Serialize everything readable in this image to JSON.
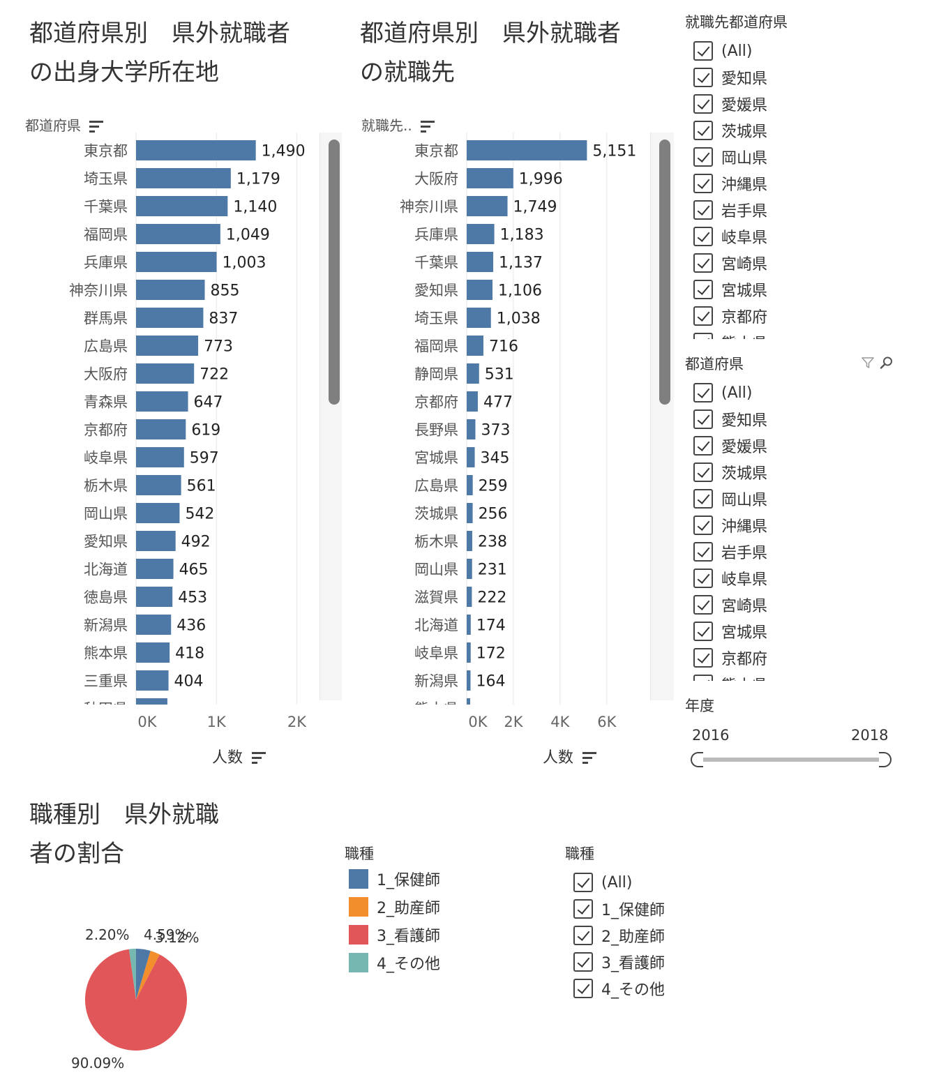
{
  "chart1": {
    "title_lines": [
      "都道府県別　県外就職者",
      "の出身大学所在地"
    ],
    "header_label": "都道府県",
    "axis_title": "人数",
    "ticks": [
      "0K",
      "1K",
      "2K"
    ],
    "partial_row_label": "秋田県",
    "partial_row_value": 390
  },
  "chart2": {
    "title_lines": [
      "都道府県別　県外就職者",
      "の就職先"
    ],
    "header_label": "就職先..",
    "axis_title": "人数",
    "ticks": [
      "0K",
      "2K",
      "4K",
      "6K"
    ],
    "partial_row_label": "熊本県",
    "partial_row_value": 150
  },
  "chart3": {
    "title_lines": [
      "職種別　県外就職",
      "者の割合"
    ],
    "legend_title": "職種"
  },
  "filters": {
    "employment_pref": {
      "title": "就職先都道府県",
      "items": [
        "(All)",
        "愛知県",
        "愛媛県",
        "茨城県",
        "岡山県",
        "沖縄県",
        "岩手県",
        "岐阜県",
        "宮崎県",
        "宮城県",
        "京都府",
        "熊本県"
      ]
    },
    "prefecture": {
      "title": "都道府県",
      "items": [
        "(All)",
        "愛知県",
        "愛媛県",
        "茨城県",
        "岡山県",
        "沖縄県",
        "岩手県",
        "岐阜県",
        "宮崎県",
        "宮城県",
        "京都府",
        "熊本県"
      ]
    },
    "year": {
      "title": "年度",
      "min_label": "2016",
      "max_label": "2018"
    },
    "job_type": {
      "title": "職種",
      "items": [
        "(All)",
        "1_保健師",
        "2_助産師",
        "3_看護師",
        "4_その他"
      ]
    }
  },
  "colors": {
    "bar": "#4e79a7",
    "hokenshi": "#4e79a7",
    "josanshi": "#f28e2b",
    "kangoshi": "#e15759",
    "sonota": "#76b7b2"
  },
  "chart_data": [
    {
      "type": "bar",
      "orientation": "horizontal",
      "title": "都道府県別　県外就職者の出身大学所在地",
      "xlabel": "人数",
      "ylabel": "都道府県",
      "xlim": [
        0,
        2300
      ],
      "categories": [
        "東京都",
        "埼玉県",
        "千葉県",
        "福岡県",
        "兵庫県",
        "神奈川県",
        "群馬県",
        "広島県",
        "大阪府",
        "青森県",
        "京都府",
        "岐阜県",
        "栃木県",
        "岡山県",
        "愛知県",
        "北海道",
        "徳島県",
        "新潟県",
        "熊本県",
        "三重県"
      ],
      "values": [
        1490,
        1179,
        1140,
        1049,
        1003,
        855,
        837,
        773,
        722,
        647,
        619,
        597,
        561,
        542,
        492,
        465,
        453,
        436,
        418,
        404
      ],
      "value_labels": [
        "1,490",
        "1,179",
        "1,140",
        "1,049",
        "1,003",
        "855",
        "837",
        "773",
        "722",
        "647",
        "619",
        "597",
        "561",
        "542",
        "492",
        "465",
        "453",
        "436",
        "418",
        "404"
      ]
    },
    {
      "type": "bar",
      "orientation": "horizontal",
      "title": "都道府県別　県外就職者の就職先",
      "xlabel": "人数",
      "ylabel": "就職先..",
      "xlim": [
        0,
        7500
      ],
      "categories": [
        "東京都",
        "大阪府",
        "神奈川県",
        "兵庫県",
        "千葉県",
        "愛知県",
        "埼玉県",
        "福岡県",
        "静岡県",
        "京都府",
        "長野県",
        "宮城県",
        "広島県",
        "茨城県",
        "栃木県",
        "岡山県",
        "滋賀県",
        "北海道",
        "岐阜県",
        "新潟県"
      ],
      "values": [
        5151,
        1996,
        1749,
        1183,
        1137,
        1106,
        1038,
        716,
        531,
        477,
        373,
        345,
        259,
        256,
        238,
        231,
        222,
        174,
        172,
        164
      ],
      "value_labels": [
        "5,151",
        "1,996",
        "1,749",
        "1,183",
        "1,137",
        "1,106",
        "1,038",
        "716",
        "531",
        "477",
        "373",
        "345",
        "259",
        "256",
        "238",
        "231",
        "222",
        "174",
        "172",
        "164"
      ]
    },
    {
      "type": "pie",
      "title": "職種別　県外就職者の割合",
      "categories": [
        "1_保健師",
        "2_助産師",
        "3_看護師",
        "4_その他"
      ],
      "values": [
        4.59,
        3.12,
        90.09,
        2.2
      ],
      "value_labels": [
        "4.59%",
        "3.12%",
        "90.09%",
        "2.20%"
      ]
    }
  ]
}
